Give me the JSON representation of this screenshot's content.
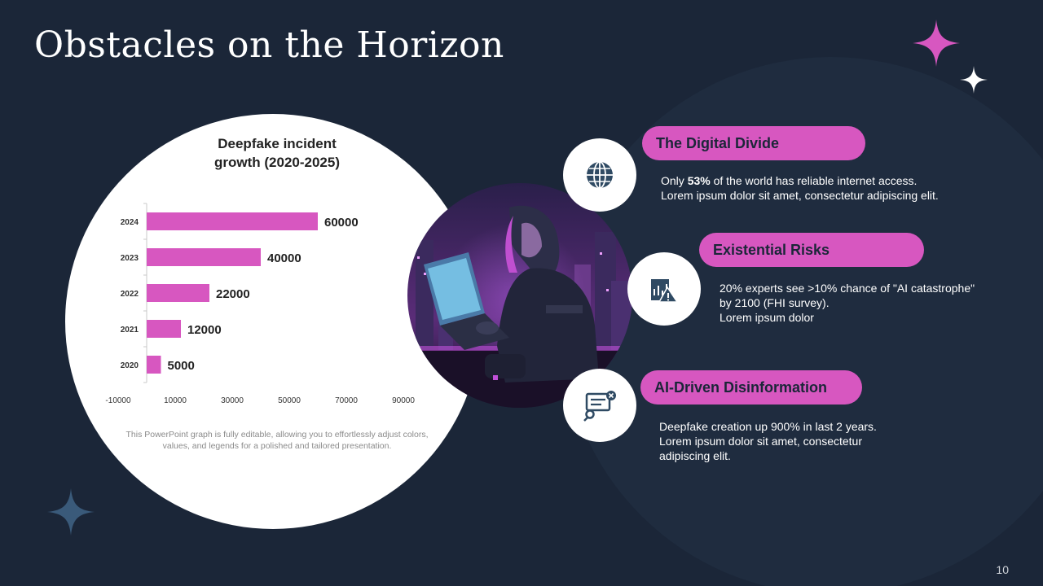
{
  "slide": {
    "title": "Obstacles on the Horizon",
    "page_number": "10"
  },
  "chart_data": {
    "type": "bar",
    "orientation": "horizontal",
    "title": "Deepfake incident growth (2020-2025)",
    "title_lines": [
      "Deepfake incident",
      "growth (2020-2025)"
    ],
    "categories": [
      "2020",
      "2021",
      "2022",
      "2023",
      "2024"
    ],
    "values": [
      5000,
      12000,
      22000,
      40000,
      60000
    ],
    "value_labels": [
      "5000",
      "12000",
      "22000",
      "40000",
      "60000"
    ],
    "xlim": [
      -10000,
      90000
    ],
    "x_ticks": [
      -10000,
      10000,
      30000,
      50000,
      70000,
      90000
    ],
    "x_tick_labels": [
      "-10000",
      "10000",
      "30000",
      "50000",
      "70000",
      "90000"
    ],
    "bar_color": "#d757c0",
    "grid": false,
    "caption": "This PowerPoint graph is fully editable, allowing you to effortlessly adjust colors, values, and legends for a polished and tailored presentation."
  },
  "items": [
    {
      "heading": "The Digital Divide",
      "icon": "globe-icon",
      "desc_prefix": "Only ",
      "desc_bold": "53%",
      "desc_line1_rest": " of the world has reliable internet access.",
      "desc_line2": "Lorem ipsum dolor sit amet, consectetur adipiscing elit."
    },
    {
      "heading": "Existential Risks",
      "icon": "risk-chart-icon",
      "desc_line1": "20% experts see >10% chance of \"AI catastrophe\"",
      "desc_line2": "by 2100 (FHI survey).",
      "desc_line3": "Lorem ipsum dolor"
    },
    {
      "heading": "AI-Driven Disinformation",
      "icon": "fake-news-icon",
      "desc_line1": "Deepfake creation up 900% in last 2 years.",
      "desc_line2": "Lorem ipsum dolor sit amet, consectetur",
      "desc_line3": "adipiscing elit."
    }
  ],
  "colors": {
    "background": "#1b2638",
    "accent": "#d757c0",
    "icon": "#2f4a63"
  }
}
